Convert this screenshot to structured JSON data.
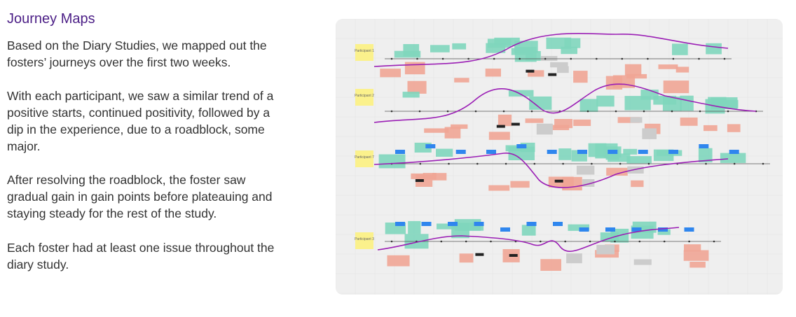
{
  "heading": "Journey Maps",
  "paragraphs": [
    [
      "Based on the Diary Studies, we mapped out the",
      "fosters’ journeys over the first two weeks."
    ],
    [
      "With each participant, we saw a similar trend of a",
      "positive starts, continued positivity, followed by a",
      "dip in the experience, due to a   roadblock, some",
      "major."
    ],
    [
      "After resolving the roadblock, the foster saw",
      "gradual gain in gain points before plateauing and",
      "staying steady for the rest of the study."
    ],
    [
      "Each foster had at least one issue throughout the",
      "diary study."
    ]
  ],
  "board": {
    "participants": [
      "Participant 1",
      "Participant 2",
      "Participant 7",
      "Participant 3"
    ],
    "colors": {
      "teal_note": "#7fd6bd",
      "red_note": "#f0a595",
      "yellow_note": "#fbf18c",
      "blue_tag": "#2f86ee",
      "journey_line": "#9b1fb5",
      "timeline": "#555555",
      "gray_note": "#cccccc",
      "black_tag": "#222222"
    }
  }
}
